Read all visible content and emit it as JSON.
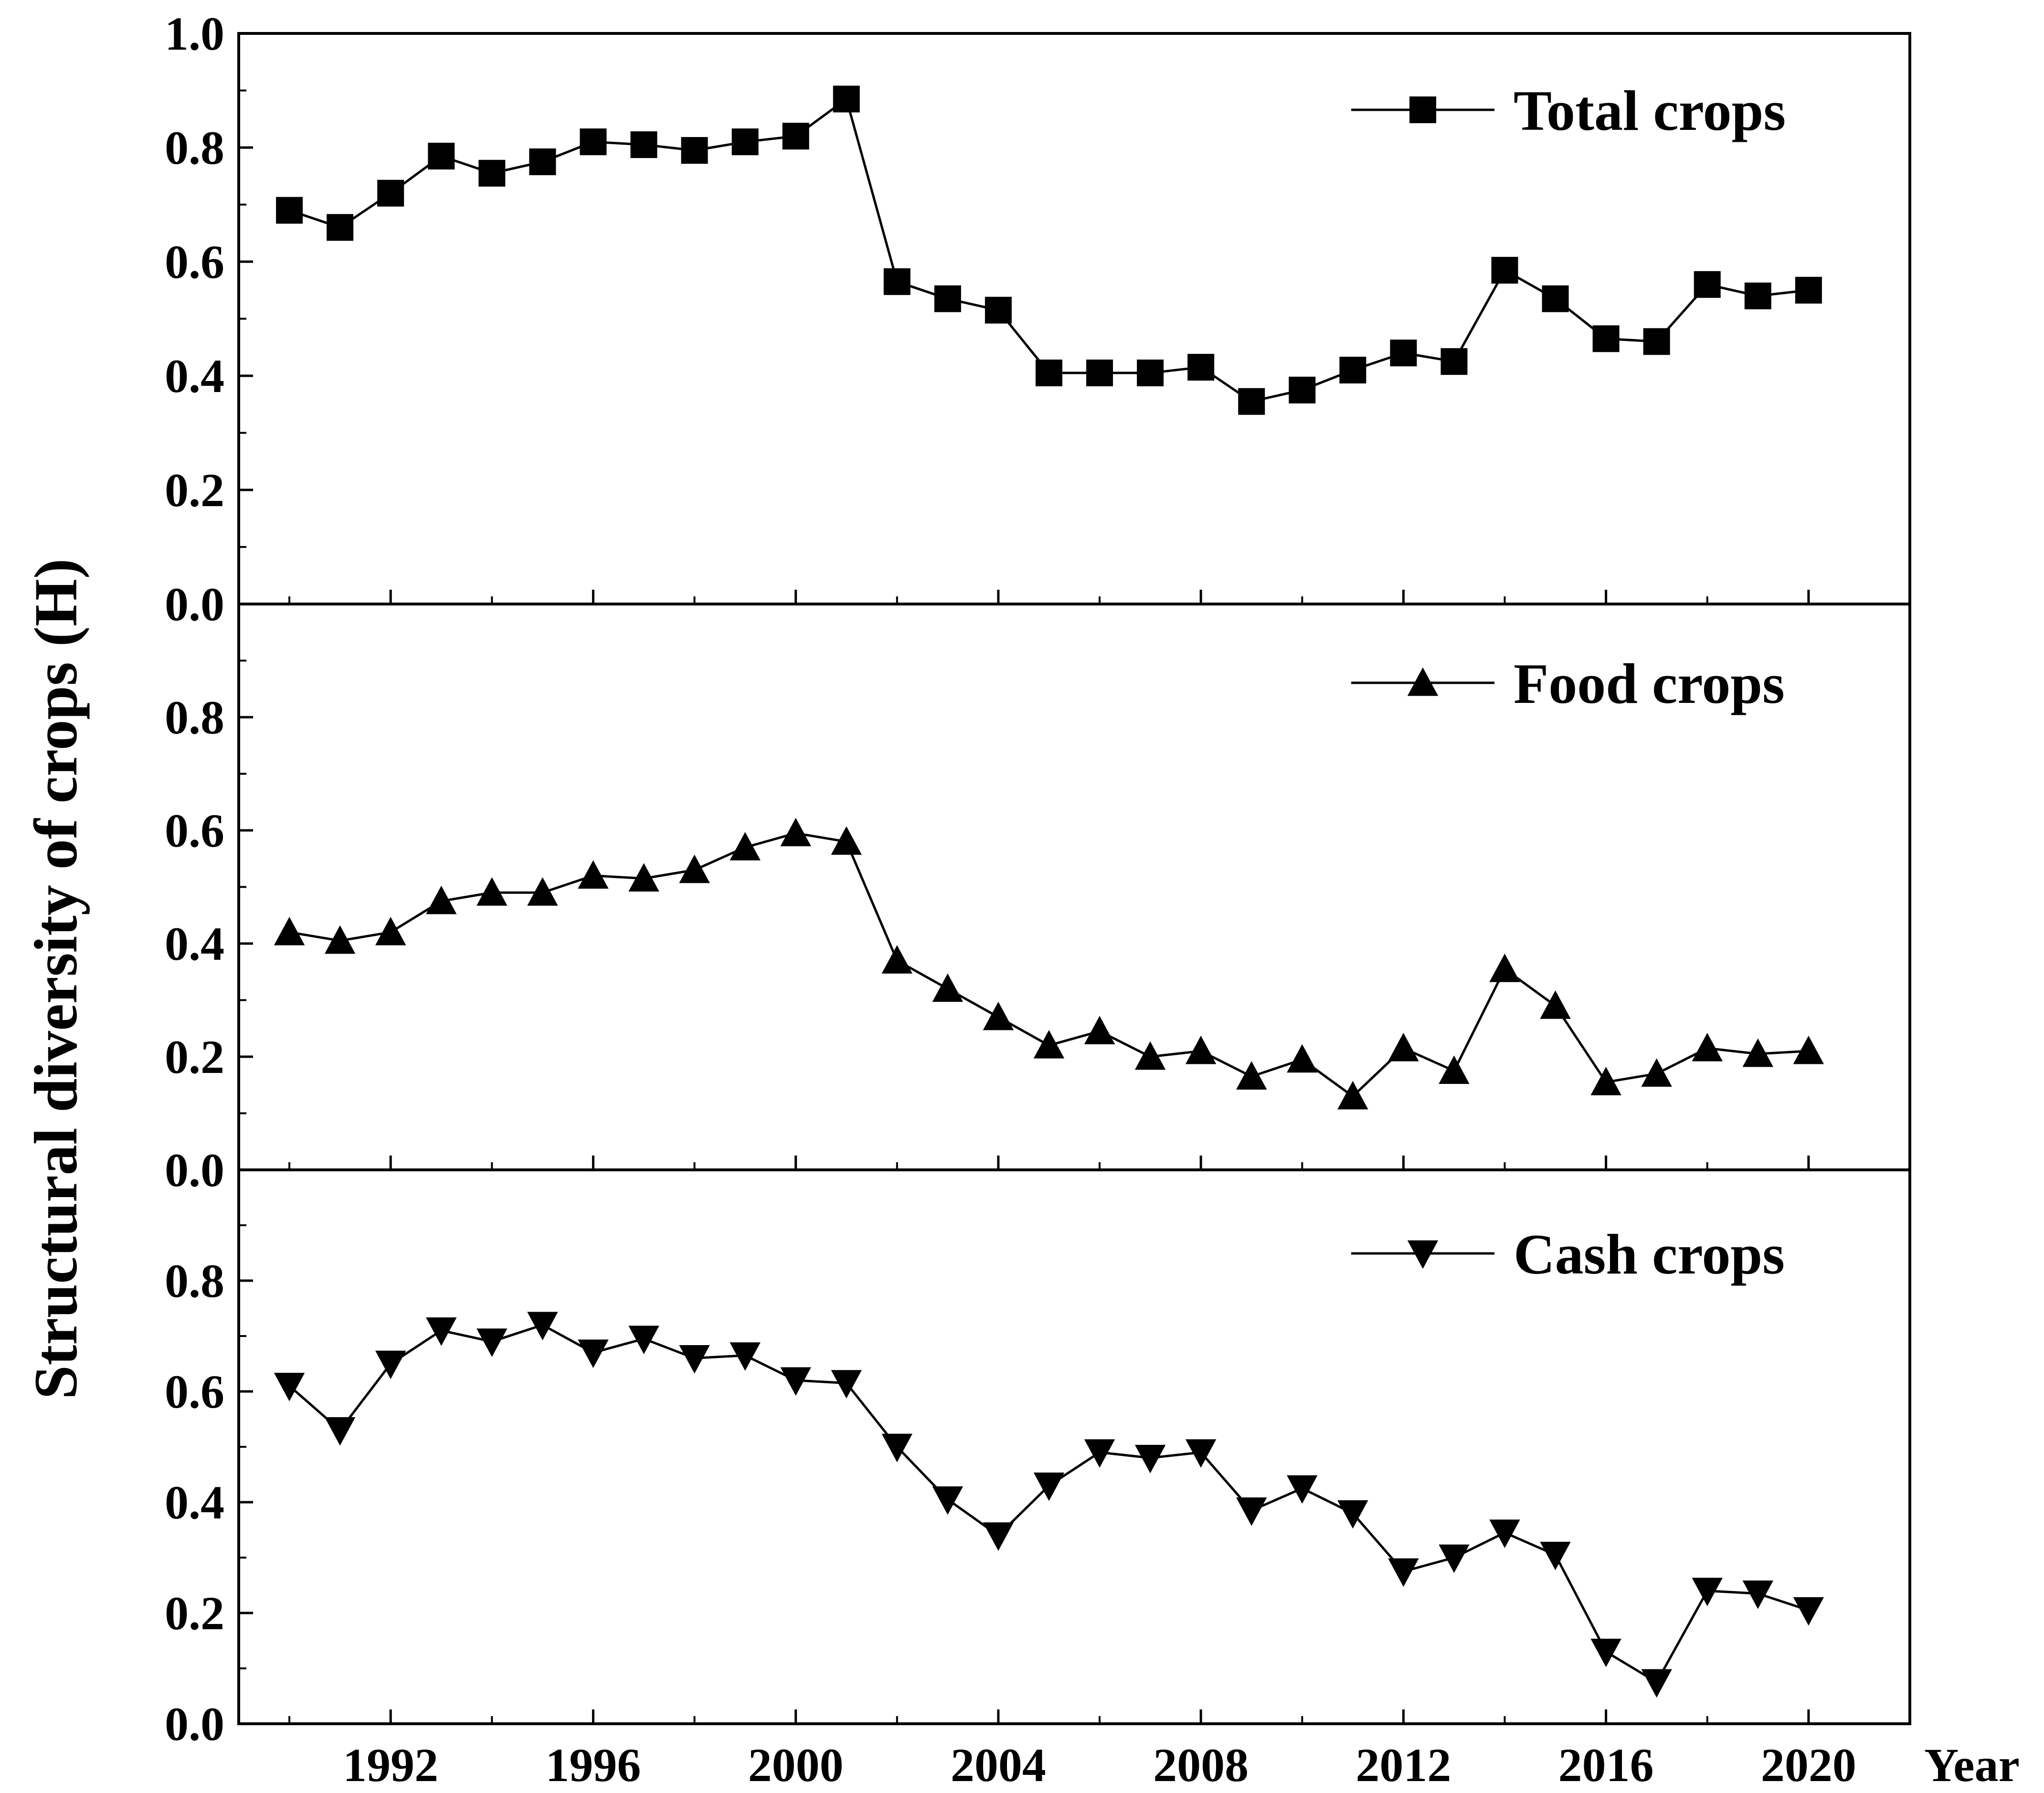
{
  "chart_data": {
    "type": "line",
    "ylabel": "Structural diversity of crops (H)",
    "xlabel": "Year",
    "xlim": [
      1989,
      2022
    ],
    "x_ticks": [
      1992,
      1996,
      2000,
      2004,
      2008,
      2012,
      2016,
      2020
    ],
    "x_tick_labels": [
      "1992",
      "1996",
      "2000",
      "2004",
      "2008",
      "2012",
      "2016",
      "2020"
    ],
    "years": [
      1990,
      1991,
      1992,
      1993,
      1994,
      1995,
      1996,
      1997,
      1998,
      1999,
      2000,
      2001,
      2002,
      2003,
      2004,
      2005,
      2006,
      2007,
      2008,
      2009,
      2010,
      2011,
      2012,
      2013,
      2014,
      2015,
      2016,
      2017,
      2018,
      2019,
      2020
    ],
    "panels": [
      {
        "name": "Total crops",
        "marker": "square",
        "ylim": [
          0,
          1.0
        ],
        "y_ticks": [
          0.0,
          0.2,
          0.4,
          0.6,
          0.8,
          1.0
        ],
        "y_tick_labels": [
          "0.0",
          "0.2",
          "0.4",
          "0.6",
          "0.8",
          "1.0"
        ],
        "values": [
          0.69,
          0.66,
          0.72,
          0.785,
          0.755,
          0.775,
          0.81,
          0.805,
          0.795,
          0.81,
          0.82,
          0.885,
          0.565,
          0.535,
          0.515,
          0.405,
          0.405,
          0.405,
          0.415,
          0.355,
          0.375,
          0.41,
          0.44,
          0.425,
          0.585,
          0.535,
          0.465,
          0.46,
          0.56,
          0.54,
          0.55
        ]
      },
      {
        "name": "Food crops",
        "marker": "triangle-up",
        "ylim": [
          0,
          1.0
        ],
        "y_ticks": [
          0.0,
          0.2,
          0.4,
          0.6,
          0.8
        ],
        "y_tick_labels": [
          "0.0",
          "0.2",
          "0.4",
          "0.6",
          "0.8"
        ],
        "values": [
          0.42,
          0.405,
          0.42,
          0.475,
          0.49,
          0.49,
          0.52,
          0.515,
          0.53,
          0.57,
          0.595,
          0.58,
          0.37,
          0.32,
          0.27,
          0.22,
          0.245,
          0.2,
          0.21,
          0.165,
          0.195,
          0.13,
          0.215,
          0.175,
          0.355,
          0.29,
          0.155,
          0.17,
          0.215,
          0.205,
          0.21
        ]
      },
      {
        "name": "Cash crops",
        "marker": "triangle-down",
        "ylim": [
          0,
          1.0
        ],
        "y_ticks": [
          0.0,
          0.2,
          0.4,
          0.6,
          0.8
        ],
        "y_tick_labels": [
          "0.0",
          "0.2",
          "0.4",
          "0.6",
          "0.8"
        ],
        "values": [
          0.61,
          0.53,
          0.65,
          0.71,
          0.69,
          0.72,
          0.67,
          0.695,
          0.66,
          0.665,
          0.62,
          0.615,
          0.5,
          0.405,
          0.34,
          0.43,
          0.49,
          0.48,
          0.49,
          0.385,
          0.425,
          0.38,
          0.275,
          0.3,
          0.345,
          0.305,
          0.13,
          0.075,
          0.24,
          0.235,
          0.205
        ]
      }
    ]
  }
}
